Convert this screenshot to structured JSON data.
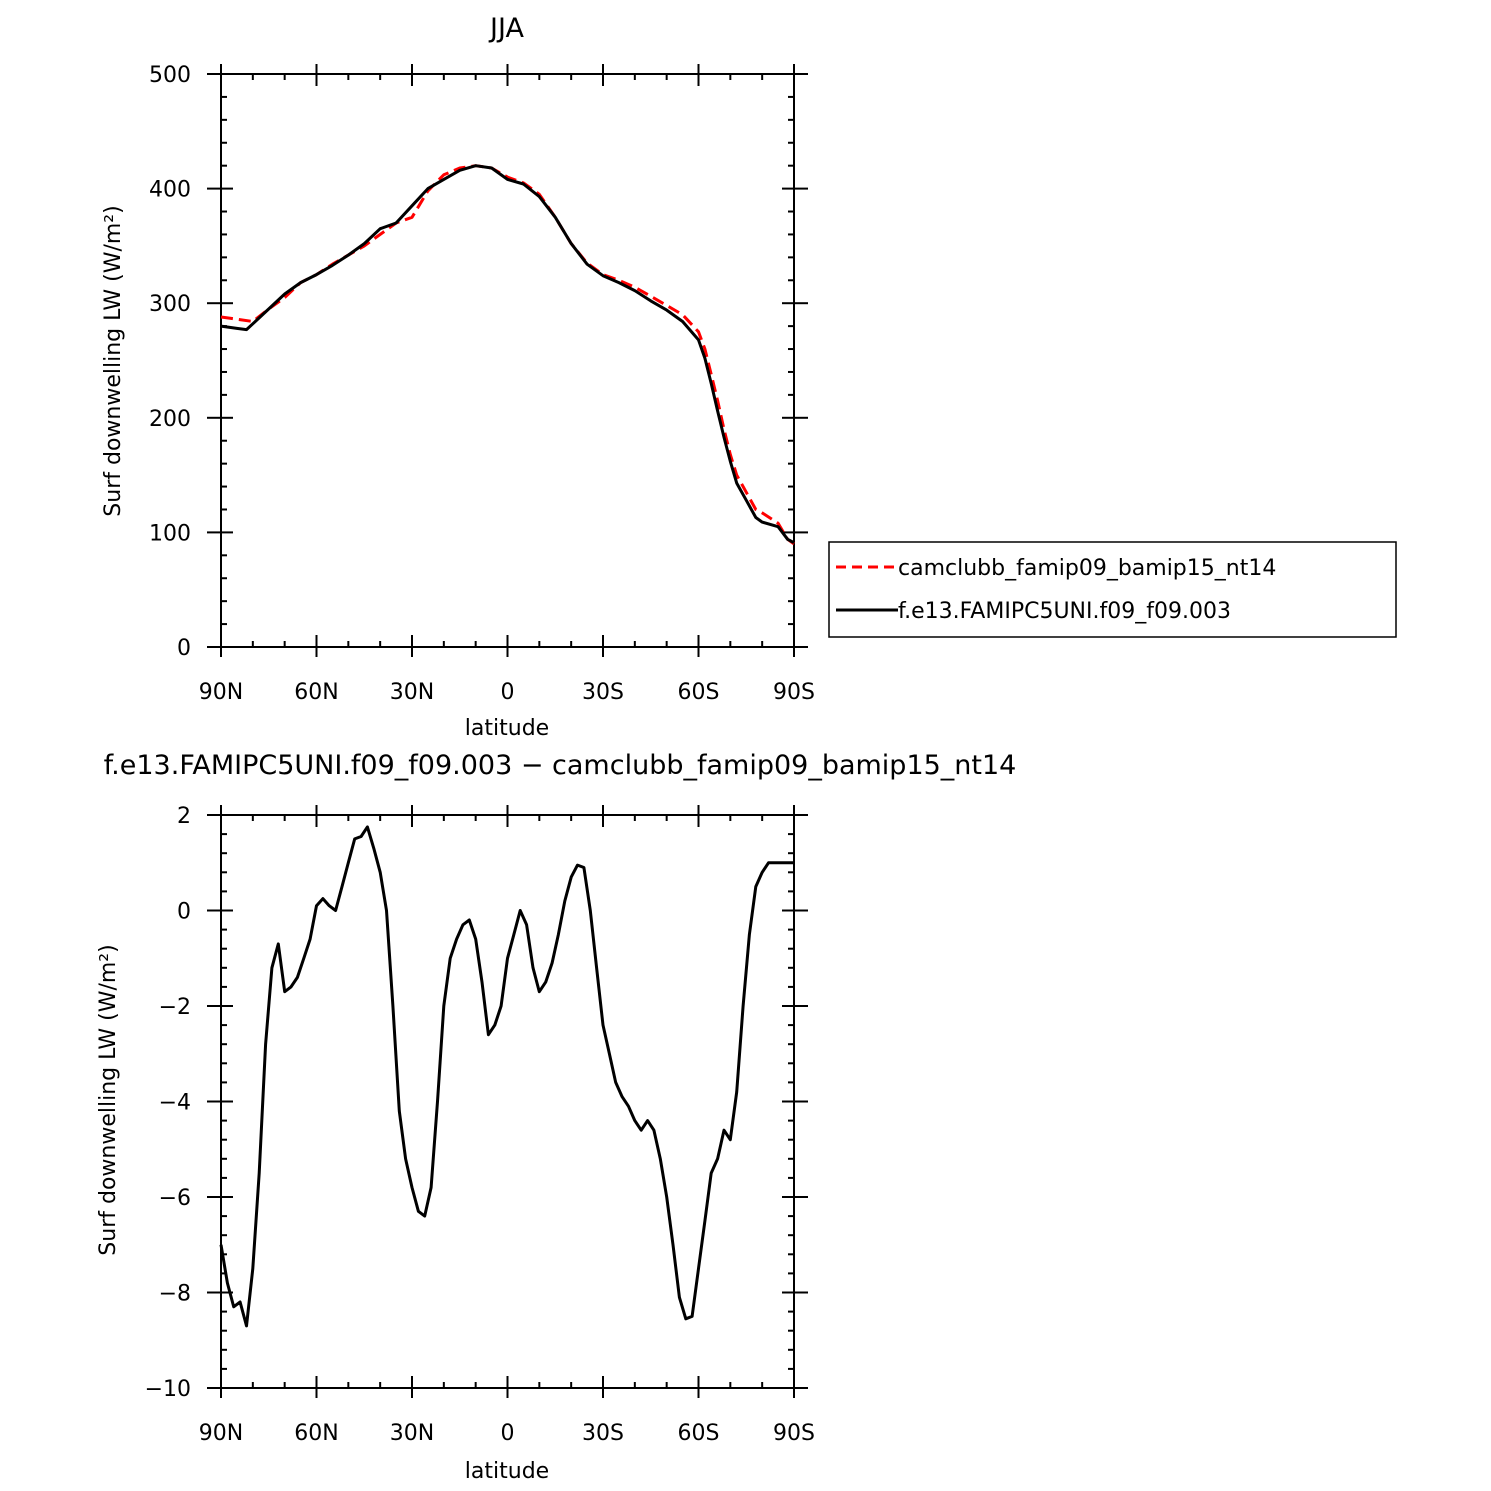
{
  "chart_data": [
    {
      "type": "line",
      "title": "JJA",
      "xlabel": "latitude",
      "ylabel": "Surf downwelling LW (W/m²)",
      "ylim": [
        0,
        500
      ],
      "xlim": [
        90,
        -90
      ],
      "x_ticks": [
        90,
        60,
        30,
        0,
        -30,
        -60,
        -90
      ],
      "x_tick_labels": [
        "90N",
        "60N",
        "30N",
        "0",
        "30S",
        "60S",
        "90S"
      ],
      "y_ticks": [
        0,
        100,
        200,
        300,
        400,
        500
      ],
      "y_tick_labels": [
        "0",
        "100",
        "200",
        "300",
        "400",
        "500"
      ],
      "grid": false,
      "legend_position": "right",
      "series": [
        {
          "name": "camclubb_famip09_bamip15_nt14",
          "color": "#ff0000",
          "dash": "dashed",
          "x": [
            90,
            85,
            80,
            75,
            70,
            65,
            60,
            55,
            50,
            45,
            40,
            35,
            30,
            25,
            20,
            15,
            10,
            5,
            0,
            -5,
            -10,
            -15,
            -20,
            -25,
            -30,
            -35,
            -40,
            -45,
            -50,
            -55,
            -60,
            -62,
            -64,
            -66,
            -68,
            -70,
            -72,
            -75,
            -78,
            -80,
            -85,
            -88,
            -90
          ],
          "y": [
            288,
            286,
            284,
            295,
            305,
            318,
            325,
            334,
            342,
            350,
            360,
            370,
            375,
            398,
            412,
            418,
            420,
            418,
            410,
            405,
            395,
            375,
            352,
            335,
            325,
            320,
            314,
            306,
            298,
            290,
            275,
            260,
            238,
            215,
            190,
            168,
            150,
            135,
            120,
            117,
            108,
            94,
            90
          ]
        },
        {
          "name": "f.e13.FAMIPC5UNI.f09_f09.003",
          "color": "#000000",
          "dash": "solid",
          "x": [
            90,
            85,
            82,
            80,
            75,
            70,
            65,
            60,
            55,
            50,
            45,
            40,
            35,
            30,
            25,
            20,
            15,
            10,
            5,
            0,
            -5,
            -10,
            -15,
            -20,
            -25,
            -30,
            -35,
            -40,
            -45,
            -50,
            -55,
            -60,
            -62,
            -64,
            -66,
            -68,
            -70,
            -72,
            -75,
            -78,
            -80,
            -85,
            -88,
            -90
          ],
          "y": [
            280,
            278,
            277,
            282,
            295,
            308,
            318,
            325,
            333,
            342,
            352,
            365,
            370,
            385,
            400,
            408,
            416,
            420,
            418,
            408,
            404,
            393,
            375,
            352,
            334,
            324,
            318,
            311,
            302,
            294,
            284,
            268,
            252,
            230,
            206,
            183,
            162,
            143,
            128,
            113,
            109,
            105,
            94,
            91
          ]
        }
      ]
    },
    {
      "type": "line",
      "title": "f.e13.FAMIPC5UNI.f09_f09.003 − camclubb_famip09_bamip15_nt14",
      "xlabel": "latitude",
      "ylabel": "Surf downwelling LW (W/m²)",
      "ylim": [
        -10,
        2
      ],
      "xlim": [
        90,
        -90
      ],
      "x_ticks": [
        90,
        60,
        30,
        0,
        -30,
        -60,
        -90
      ],
      "x_tick_labels": [
        "90N",
        "60N",
        "30N",
        "0",
        "30S",
        "60S",
        "90S"
      ],
      "y_ticks": [
        -10,
        -8,
        -6,
        -4,
        -2,
        0,
        2
      ],
      "y_tick_labels": [
        "−10",
        "−8",
        "−6",
        "−4",
        "−2",
        "0",
        "2"
      ],
      "grid": false,
      "series": [
        {
          "color": "#000000",
          "dash": "solid",
          "x": [
            90,
            88,
            86,
            84,
            82,
            80,
            78,
            76,
            74,
            72,
            70,
            68,
            66,
            64,
            62,
            60,
            58,
            56,
            54,
            52,
            50,
            48,
            46,
            44,
            42,
            40,
            38,
            36,
            34,
            32,
            30,
            28,
            26,
            24,
            22,
            20,
            18,
            16,
            14,
            12,
            10,
            8,
            6,
            4,
            2,
            0,
            -2,
            -4,
            -6,
            -8,
            -10,
            -12,
            -14,
            -16,
            -18,
            -20,
            -22,
            -24,
            -26,
            -28,
            -30,
            -32,
            -34,
            -36,
            -38,
            -40,
            -42,
            -44,
            -46,
            -48,
            -50,
            -52,
            -54,
            -56,
            -58,
            -60,
            -62,
            -64,
            -66,
            -68,
            -70,
            -72,
            -74,
            -76,
            -78,
            -80,
            -82,
            -84,
            -86,
            -88,
            -90
          ],
          "y": [
            -7.0,
            -7.8,
            -8.3,
            -8.2,
            -8.7,
            -7.5,
            -5.5,
            -2.8,
            -1.2,
            -0.7,
            -1.7,
            -1.6,
            -1.4,
            -1.0,
            -0.6,
            0.1,
            0.25,
            0.1,
            0.0,
            0.5,
            1.0,
            1.5,
            1.55,
            1.75,
            1.3,
            0.8,
            0.0,
            -2.0,
            -4.2,
            -5.2,
            -5.8,
            -6.3,
            -6.4,
            -5.8,
            -4.0,
            -2.0,
            -1.0,
            -0.6,
            -0.3,
            -0.2,
            -0.6,
            -1.5,
            -2.6,
            -2.4,
            -2.0,
            -1.0,
            -0.5,
            0.0,
            -0.3,
            -1.2,
            -1.7,
            -1.5,
            -1.1,
            -0.5,
            0.2,
            0.7,
            0.95,
            0.9,
            0.0,
            -1.2,
            -2.4,
            -3.0,
            -3.6,
            -3.9,
            -4.1,
            -4.4,
            -4.6,
            -4.4,
            -4.6,
            -5.2,
            -6.0,
            -7.0,
            -8.1,
            -8.55,
            -8.5,
            -7.5,
            -6.5,
            -5.5,
            -5.2,
            -4.6,
            -4.8,
            -3.8,
            -2.0,
            -0.5,
            0.5,
            0.8,
            1.0,
            1.0,
            1.0,
            1.0,
            1.0
          ]
        }
      ]
    }
  ]
}
